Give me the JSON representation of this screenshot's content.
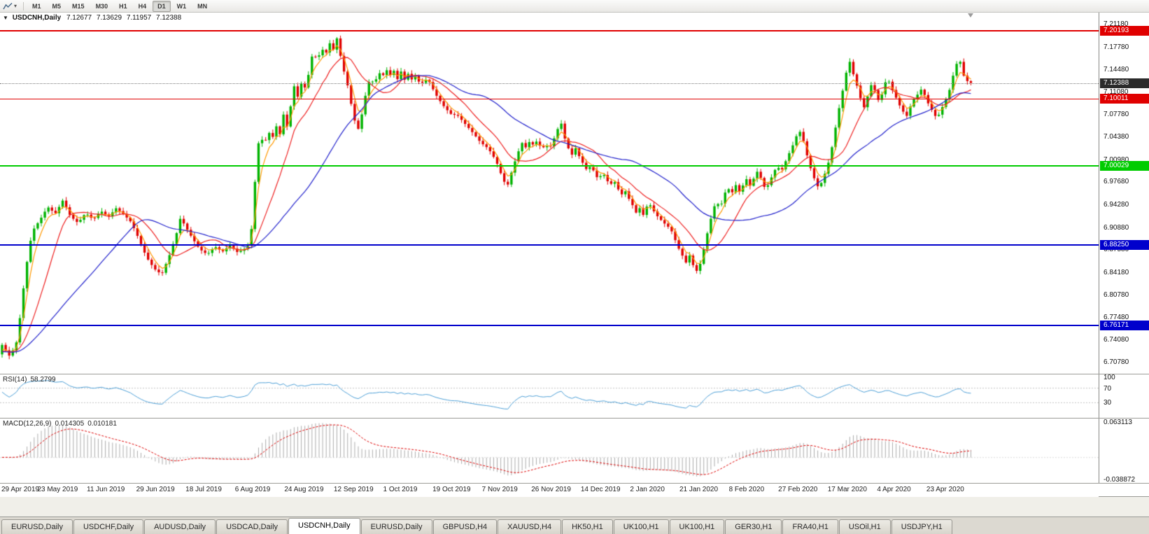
{
  "toolbar": {
    "timeframes": [
      "M1",
      "M5",
      "M15",
      "M30",
      "H1",
      "H4",
      "D1",
      "W1",
      "MN"
    ],
    "active_timeframe": "D1",
    "chart_icon": "line-chart-icon"
  },
  "chart": {
    "title_symbol": "USDCNH,Daily",
    "ohlc": {
      "open": "7.12677",
      "high": "7.13629",
      "low": "7.11957",
      "close": "7.12388"
    },
    "price_ticks": [
      "7.21180",
      "7.17780",
      "7.14480",
      "7.11080",
      "7.07780",
      "7.04380",
      "7.00980",
      "6.97680",
      "6.94280",
      "6.90880",
      "6.87580",
      "6.84180",
      "6.80780",
      "6.77480",
      "6.74080",
      "6.70780"
    ],
    "date_ticks": [
      "29 Apr 2019",
      "23 May 2019",
      "11 Jun 2019",
      "29 Jun 2019",
      "18 Jul 2019",
      "6 Aug 2019",
      "24 Aug 2019",
      "12 Sep 2019",
      "1 Oct 2019",
      "19 Oct 2019",
      "7 Nov 2019",
      "26 Nov 2019",
      "14 Dec 2019",
      "2 Jan 2020",
      "21 Jan 2020",
      "8 Feb 2020",
      "27 Feb 2020",
      "17 Mar 2020",
      "4 Apr 2020",
      "23 Apr 2020"
    ],
    "levels": [
      {
        "price": "7.20193",
        "value": 7.20193,
        "color": "#e00000",
        "thickness": 1.5
      },
      {
        "price": "7.10011",
        "value": 7.10011,
        "color": "#e00000",
        "thickness": 1.5
      },
      {
        "price": "7.00029",
        "value": 7.00029,
        "color": "#00cc00",
        "thickness": 1.5
      },
      {
        "price": "6.88250",
        "value": 6.8825,
        "color": "#0000cc",
        "thickness": 2
      },
      {
        "price": "6.76171",
        "value": 6.76171,
        "color": "#0000cc",
        "thickness": 2
      }
    ],
    "last_price": {
      "label": "7.12388",
      "value": 7.12388,
      "badge_color": "#2b2b2b"
    }
  },
  "rsi": {
    "label": "RSI(14)",
    "value": "58.2799",
    "line_color": "#4d9fd6",
    "ticks": [
      {
        "label": "100",
        "value": 100
      },
      {
        "label": "70",
        "value": 70
      },
      {
        "label": "30",
        "value": 30
      }
    ],
    "level_lines": [
      70,
      30
    ]
  },
  "macd": {
    "label": "MACD(12,26,9)",
    "main_value": "0.014305",
    "signal_value": "0.010181",
    "histogram_color": "#acacac",
    "signal_color": "#dd0000",
    "ticks": [
      {
        "label": "0.063113",
        "value": 0.063113
      },
      {
        "label": "-0.038872",
        "value": -0.038872
      }
    ]
  },
  "tabs": {
    "items": [
      "EURUSD,Daily",
      "USDCHF,Daily",
      "AUDUSD,Daily",
      "USDCAD,Daily",
      "USDCNH,Daily",
      "EURUSD,Daily",
      "GBPUSD,H4",
      "XAUUSD,H4",
      "HK50,H1",
      "UK100,H1",
      "UK100,H1",
      "GER30,H1",
      "FRA40,H1",
      "USOil,H1",
      "USDJPY,H1"
    ],
    "active_index": 4
  },
  "chart_data": {
    "type": "candlestick",
    "symbol": "USDCNH",
    "timeframe": "Daily",
    "x_range": [
      "29 Apr 2019",
      "23 Apr 2020"
    ],
    "y_range": [
      6.69,
      7.229
    ],
    "candle_count": 273,
    "bull_color": "#00b300",
    "bear_color": "#e00000",
    "prepend_history_close": 6.722,
    "moving_averages": [
      {
        "type": "ema",
        "period": 4,
        "color": "#ff9900"
      },
      {
        "type": "sma",
        "period": 12,
        "color": "#ee2222"
      },
      {
        "type": "sma",
        "period": 34,
        "color": "#2222cc"
      }
    ],
    "indicators": [
      {
        "name": "RSI",
        "period": 14,
        "current": 58.2799,
        "range": [
          0,
          100
        ],
        "levels": [
          70,
          30
        ]
      },
      {
        "name": "MACD",
        "fast": 12,
        "slow": 26,
        "signal": 9,
        "current_main": 0.014305,
        "current_signal": 0.010181,
        "range": [
          -0.038872,
          0.063113
        ]
      }
    ],
    "close_waypoints": [
      [
        0,
        6.733
      ],
      [
        2,
        6.716
      ],
      [
        3,
        6.727
      ],
      [
        4,
        6.74
      ],
      [
        5,
        6.788
      ],
      [
        6,
        6.835
      ],
      [
        7,
        6.874
      ],
      [
        8,
        6.903
      ],
      [
        10,
        6.92
      ],
      [
        12,
        6.939
      ],
      [
        14,
        6.929
      ],
      [
        16,
        6.949
      ],
      [
        18,
        6.925
      ],
      [
        20,
        6.915
      ],
      [
        22,
        6.93
      ],
      [
        24,
        6.92
      ],
      [
        26,
        6.933
      ],
      [
        28,
        6.924
      ],
      [
        30,
        6.937
      ],
      [
        32,
        6.928
      ],
      [
        34,
        6.916
      ],
      [
        36,
        6.891
      ],
      [
        38,
        6.864
      ],
      [
        40,
        6.847
      ],
      [
        42,
        6.838
      ],
      [
        44,
        6.866
      ],
      [
        46,
        6.901
      ],
      [
        47,
        6.924
      ],
      [
        48,
        6.912
      ],
      [
        50,
        6.893
      ],
      [
        52,
        6.876
      ],
      [
        54,
        6.868
      ],
      [
        56,
        6.88
      ],
      [
        58,
        6.872
      ],
      [
        60,
        6.882
      ],
      [
        62,
        6.871
      ],
      [
        64,
        6.877
      ],
      [
        65,
        6.884
      ],
      [
        66,
        6.919
      ],
      [
        67,
        7.021
      ],
      [
        68,
        7.047
      ],
      [
        69,
        7.029
      ],
      [
        70,
        7.055
      ],
      [
        71,
        7.037
      ],
      [
        72,
        7.063
      ],
      [
        73,
        7.043
      ],
      [
        74,
        7.078
      ],
      [
        75,
        7.059
      ],
      [
        76,
        7.091
      ],
      [
        77,
        7.123
      ],
      [
        78,
        7.099
      ],
      [
        79,
        7.131
      ],
      [
        80,
        7.111
      ],
      [
        81,
        7.151
      ],
      [
        82,
        7.173
      ],
      [
        83,
        7.153
      ],
      [
        84,
        7.181
      ],
      [
        85,
        7.161
      ],
      [
        86,
        7.188
      ],
      [
        87,
        7.169
      ],
      [
        88,
        7.194
      ],
      [
        89,
        7.166
      ],
      [
        90,
        7.141
      ],
      [
        91,
        7.119
      ],
      [
        92,
        7.089
      ],
      [
        93,
        7.063
      ],
      [
        94,
        7.053
      ],
      [
        95,
        7.088
      ],
      [
        96,
        7.115
      ],
      [
        97,
        7.133
      ],
      [
        98,
        7.119
      ],
      [
        99,
        7.143
      ],
      [
        100,
        7.131
      ],
      [
        101,
        7.146
      ],
      [
        102,
        7.134
      ],
      [
        103,
        7.144
      ],
      [
        104,
        7.129
      ],
      [
        105,
        7.141
      ],
      [
        106,
        7.128
      ],
      [
        107,
        7.139
      ],
      [
        108,
        7.127
      ],
      [
        109,
        7.137
      ],
      [
        110,
        7.121
      ],
      [
        112,
        7.131
      ],
      [
        114,
        7.108
      ],
      [
        116,
        7.091
      ],
      [
        118,
        7.078
      ],
      [
        120,
        7.075
      ],
      [
        122,
        7.062
      ],
      [
        124,
        7.049
      ],
      [
        126,
        7.035
      ],
      [
        128,
        7.026
      ],
      [
        130,
        7.008
      ],
      [
        131,
        6.993
      ],
      [
        132,
        6.978
      ],
      [
        133,
        6.97
      ],
      [
        134,
        6.989
      ],
      [
        135,
        7.007
      ],
      [
        136,
        7.023
      ],
      [
        137,
        7.036
      ],
      [
        138,
        7.026
      ],
      [
        139,
        7.039
      ],
      [
        140,
        7.029
      ],
      [
        141,
        7.041
      ],
      [
        142,
        7.022
      ],
      [
        143,
        7.034
      ],
      [
        144,
        7.025
      ],
      [
        145,
        7.037
      ],
      [
        146,
        7.051
      ],
      [
        147,
        7.068
      ],
      [
        148,
        7.043
      ],
      [
        149,
        7.027
      ],
      [
        150,
        7.017
      ],
      [
        151,
        7.027
      ],
      [
        152,
        7.013
      ],
      [
        153,
        7.003
      ],
      [
        154,
        6.993
      ],
      [
        155,
        7.001
      ],
      [
        156,
        6.989
      ],
      [
        157,
        6.979
      ],
      [
        158,
        6.991
      ],
      [
        159,
        6.981
      ],
      [
        160,
        6.971
      ],
      [
        161,
        6.979
      ],
      [
        162,
        6.967
      ],
      [
        163,
        6.957
      ],
      [
        164,
        6.963
      ],
      [
        165,
        6.951
      ],
      [
        166,
        6.941
      ],
      [
        167,
        6.929
      ],
      [
        168,
        6.939
      ],
      [
        169,
        6.923
      ],
      [
        170,
        6.947
      ],
      [
        171,
        6.938
      ],
      [
        172,
        6.928
      ],
      [
        174,
        6.916
      ],
      [
        176,
        6.906
      ],
      [
        178,
        6.878
      ],
      [
        180,
        6.856
      ],
      [
        181,
        6.867
      ],
      [
        182,
        6.85
      ],
      [
        183,
        6.842
      ],
      [
        184,
        6.858
      ],
      [
        185,
        6.884
      ],
      [
        186,
        6.909
      ],
      [
        187,
        6.931
      ],
      [
        188,
        6.949
      ],
      [
        189,
        6.936
      ],
      [
        190,
        6.957
      ],
      [
        191,
        6.968
      ],
      [
        192,
        6.958
      ],
      [
        193,
        6.973
      ],
      [
        194,
        6.961
      ],
      [
        195,
        6.971
      ],
      [
        196,
        6.981
      ],
      [
        197,
        6.969
      ],
      [
        198,
        6.984
      ],
      [
        199,
        6.994
      ],
      [
        200,
        6.977
      ],
      [
        201,
        6.964
      ],
      [
        202,
        6.977
      ],
      [
        203,
        6.989
      ],
      [
        204,
        7.001
      ],
      [
        205,
        6.991
      ],
      [
        206,
        7.004
      ],
      [
        207,
        7.017
      ],
      [
        208,
        7.029
      ],
      [
        209,
        7.044
      ],
      [
        210,
        7.051
      ],
      [
        211,
        7.036
      ],
      [
        212,
        7.013
      ],
      [
        213,
        6.993
      ],
      [
        214,
        6.978
      ],
      [
        215,
        6.966
      ],
      [
        216,
        6.98
      ],
      [
        217,
        6.995
      ],
      [
        218,
        7.015
      ],
      [
        219,
        7.045
      ],
      [
        220,
        7.078
      ],
      [
        221,
        7.105
      ],
      [
        222,
        7.135
      ],
      [
        223,
        7.158
      ],
      [
        224,
        7.138
      ],
      [
        225,
        7.12
      ],
      [
        226,
        7.1
      ],
      [
        227,
        7.086
      ],
      [
        228,
        7.108
      ],
      [
        229,
        7.125
      ],
      [
        230,
        7.108
      ],
      [
        231,
        7.093
      ],
      [
        232,
        7.118
      ],
      [
        233,
        7.132
      ],
      [
        234,
        7.118
      ],
      [
        235,
        7.106
      ],
      [
        236,
        7.093
      ],
      [
        237,
        7.083
      ],
      [
        238,
        7.073
      ],
      [
        239,
        7.088
      ],
      [
        240,
        7.1
      ],
      [
        241,
        7.107
      ],
      [
        242,
        7.115
      ],
      [
        243,
        7.104
      ],
      [
        244,
        7.09
      ],
      [
        245,
        7.081
      ],
      [
        246,
        7.071
      ],
      [
        247,
        7.081
      ],
      [
        248,
        7.095
      ],
      [
        249,
        7.105
      ],
      [
        250,
        7.128
      ],
      [
        251,
        7.15
      ],
      [
        252,
        7.16
      ],
      [
        253,
        7.136
      ],
      [
        254,
        7.127
      ],
      [
        255,
        7.124
      ]
    ]
  }
}
